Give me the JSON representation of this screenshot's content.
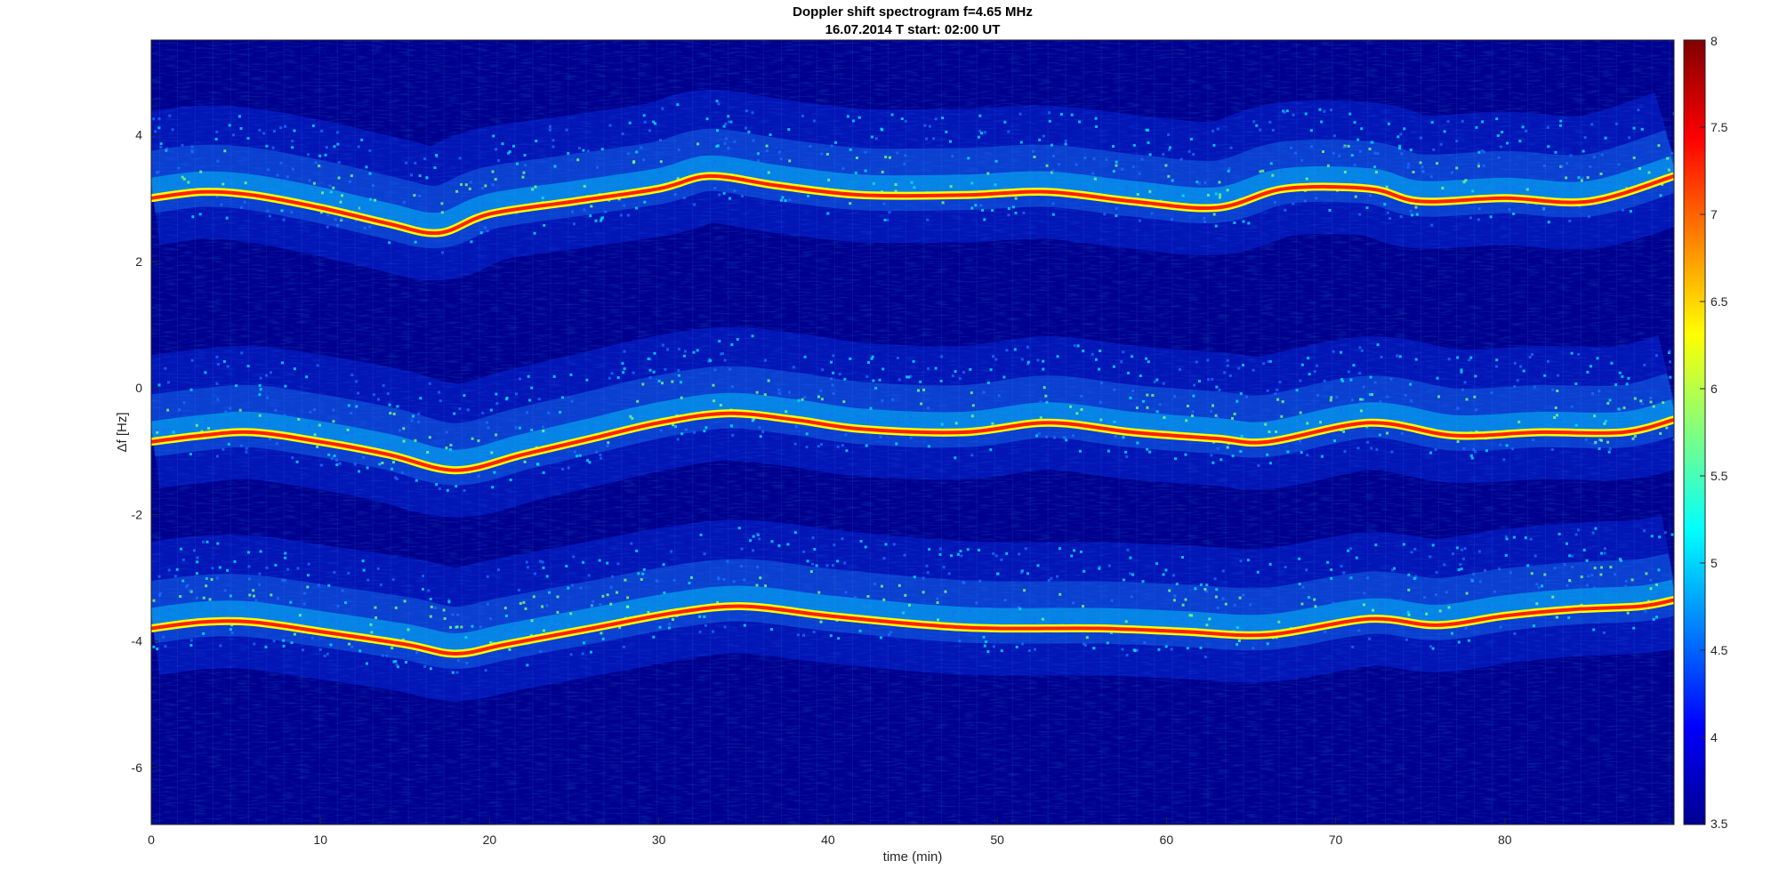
{
  "chart_data": {
    "type": "heatmap",
    "title": "Doppler shift spectrogram f=4.65 MHz",
    "subtitle": "16.07.2014   T start: 02:00 UT",
    "xlabel": "time (min)",
    "ylabel": "Δf [Hz]",
    "xlim": [
      0,
      90
    ],
    "ylim": [
      -6.9,
      5.5
    ],
    "x_ticks": [
      0,
      10,
      20,
      30,
      40,
      50,
      60,
      70,
      80
    ],
    "y_ticks": [
      4,
      2,
      0,
      -2,
      -4,
      -6
    ],
    "colormap": "jet",
    "colorbar": {
      "min": 3.5,
      "max": 8,
      "ticks": [
        8,
        7.5,
        7,
        6.5,
        6,
        5.5,
        5,
        4.5,
        4,
        3.5
      ]
    },
    "traces": [
      {
        "t": [
          0,
          3,
          6,
          10,
          14,
          17,
          20,
          25,
          30,
          33,
          37,
          42,
          48,
          53,
          58,
          63,
          67,
          72,
          75,
          80,
          85,
          90
        ],
        "f": [
          3.0,
          3.1,
          3.05,
          2.85,
          2.6,
          2.45,
          2.75,
          2.95,
          3.15,
          3.35,
          3.2,
          3.05,
          3.05,
          3.1,
          2.95,
          2.85,
          3.15,
          3.15,
          2.95,
          3.0,
          2.95,
          3.35
        ]
      },
      {
        "t": [
          0,
          3,
          6,
          10,
          14,
          18,
          22,
          26,
          30,
          34,
          38,
          42,
          48,
          53,
          58,
          63,
          66,
          72,
          77,
          82,
          87,
          90
        ],
        "f": [
          -0.85,
          -0.75,
          -0.7,
          -0.85,
          -1.05,
          -1.3,
          -1.05,
          -0.8,
          -0.55,
          -0.4,
          -0.5,
          -0.65,
          -0.7,
          -0.55,
          -0.7,
          -0.8,
          -0.85,
          -0.55,
          -0.75,
          -0.7,
          -0.7,
          -0.5
        ]
      },
      {
        "t": [
          0,
          3,
          6,
          10,
          15,
          18,
          21,
          26,
          31,
          35,
          40,
          46,
          50,
          56,
          61,
          66,
          72,
          76,
          80,
          84,
          88,
          90
        ],
        "f": [
          -3.8,
          -3.7,
          -3.7,
          -3.85,
          -4.05,
          -4.2,
          -4.05,
          -3.8,
          -3.55,
          -3.45,
          -3.6,
          -3.75,
          -3.8,
          -3.8,
          -3.85,
          -3.9,
          -3.65,
          -3.75,
          -3.6,
          -3.5,
          -3.45,
          -3.35
        ]
      }
    ]
  }
}
